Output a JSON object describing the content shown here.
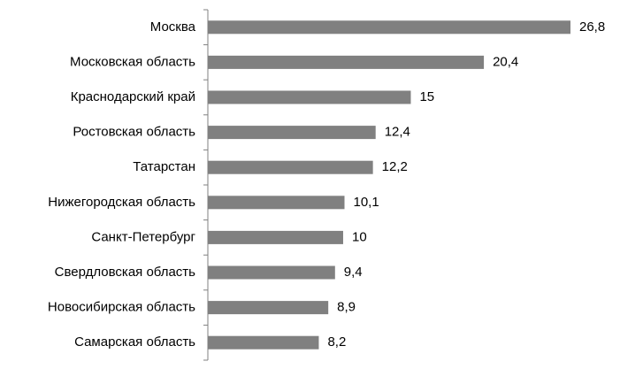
{
  "chart_data": {
    "type": "bar",
    "orientation": "horizontal",
    "categories": [
      "Москва",
      "Московская область",
      "Краснодарский край",
      "Ростовская область",
      "Татарстан",
      "Нижегородская область",
      "Санкт-Петербург",
      "Свердловская область",
      "Новосибирская область",
      "Самарская область"
    ],
    "values": [
      26.8,
      20.4,
      15,
      12.4,
      12.2,
      10.1,
      10,
      9.4,
      8.9,
      8.2
    ],
    "value_labels": [
      "26,8",
      "20,4",
      "15",
      "12,4",
      "12,2",
      "10,1",
      "10",
      "9,4",
      "8,9",
      "8,2"
    ],
    "color": "#808080"
  }
}
